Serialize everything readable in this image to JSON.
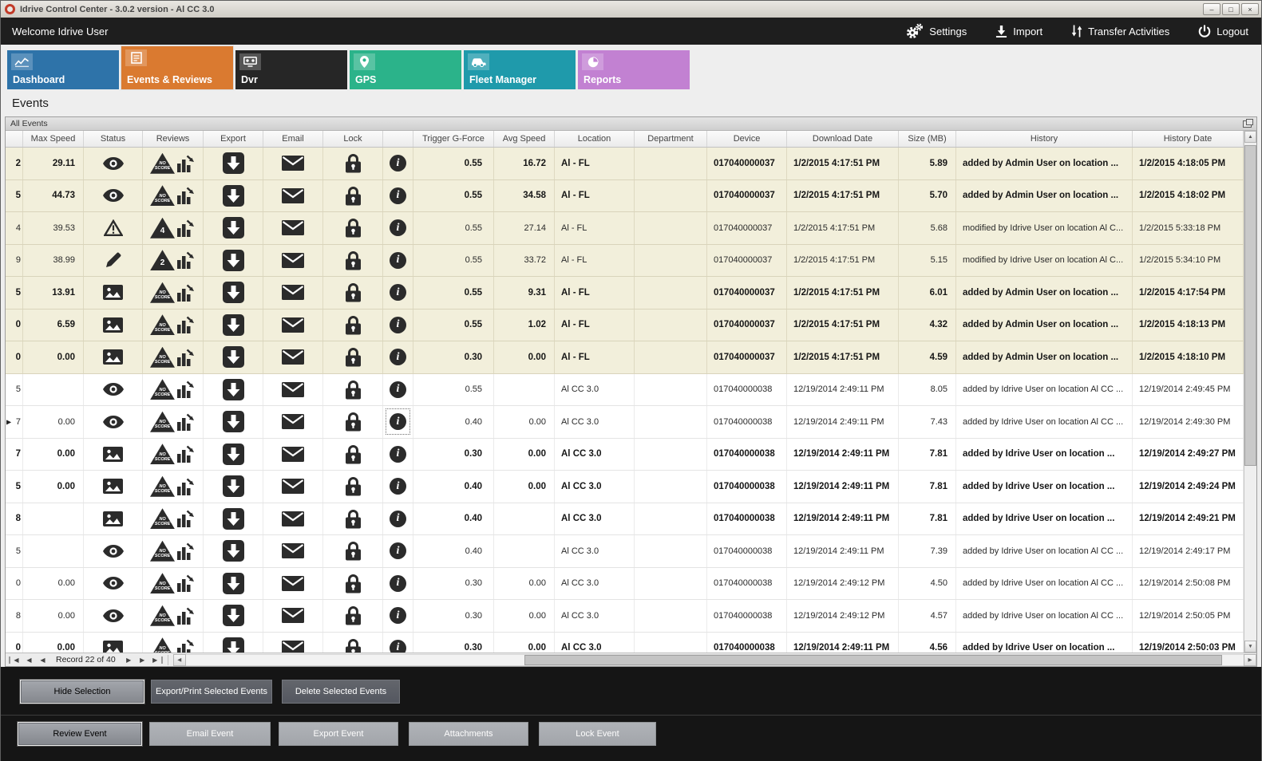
{
  "window": {
    "title": "Idrive Control Center - 3.0.2 version - Al CC 3.0"
  },
  "topbar": {
    "welcome": "Welcome Idrive User",
    "actions": [
      {
        "id": "settings",
        "icon": "gears-icon",
        "label": "Settings"
      },
      {
        "id": "import",
        "icon": "import-icon",
        "label": "Import"
      },
      {
        "id": "transfer-activities",
        "icon": "transfer-icon",
        "label": "Transfer Activities"
      },
      {
        "id": "logout",
        "icon": "power-icon",
        "label": "Logout"
      }
    ]
  },
  "tabs": [
    {
      "id": "dashboard",
      "label": "Dashboard",
      "icon": "dashboard-icon",
      "color": "#2e73a9",
      "selected": false
    },
    {
      "id": "events-reviews",
      "label": "Events & Reviews",
      "icon": "events-icon",
      "color": "#da7a30",
      "selected": true
    },
    {
      "id": "dvr",
      "label": "Dvr",
      "icon": "dvr-icon",
      "color": "#262626",
      "selected": false
    },
    {
      "id": "gps",
      "label": "GPS",
      "icon": "gps-icon",
      "color": "#2bb38a",
      "selected": false
    },
    {
      "id": "fleet-manager",
      "label": "Fleet Manager",
      "icon": "fleet-icon",
      "color": "#1f9aab",
      "selected": false
    },
    {
      "id": "reports",
      "label": "Reports",
      "icon": "reports-icon",
      "color": "#c281d2",
      "selected": false
    }
  ],
  "page": {
    "heading": "Events",
    "panel_title": "All Events"
  },
  "table": {
    "columns": [
      "",
      "Max Speed",
      "Status",
      "Reviews",
      "Export",
      "Email",
      "Lock",
      "",
      "Trigger G-Force",
      "Avg Speed",
      "Location",
      "Department",
      "Device",
      "Download Date",
      "Size (MB)",
      "History",
      "History Date"
    ],
    "rows": [
      {
        "partial": "2",
        "max_speed": "29.11",
        "status": "eye-icon",
        "score": "NO SCORE",
        "gforce": "0.55",
        "avg_speed": "16.72",
        "location": "Al - FL",
        "department": "",
        "device": "017040000037",
        "download_date": "1/2/2015 4:17:51 PM",
        "size_mb": "5.89",
        "history": "added by Admin User on location ...",
        "history_date": "1/2/2015 4:18:05 PM",
        "bold": true,
        "beige": true,
        "selected": false
      },
      {
        "partial": "5",
        "max_speed": "44.73",
        "status": "eye-icon",
        "score": "NO SCORE",
        "gforce": "0.55",
        "avg_speed": "34.58",
        "location": "Al - FL",
        "department": "",
        "device": "017040000037",
        "download_date": "1/2/2015 4:17:51 PM",
        "size_mb": "5.70",
        "history": "added by Admin User on location ...",
        "history_date": "1/2/2015 4:18:02 PM",
        "bold": true,
        "beige": true,
        "selected": false
      },
      {
        "partial": "4",
        "max_speed": "39.53",
        "status": "warning-icon",
        "score": "4",
        "gforce": "0.55",
        "avg_speed": "27.14",
        "location": "Al - FL",
        "department": "",
        "device": "017040000037",
        "download_date": "1/2/2015 4:17:51 PM",
        "size_mb": "5.68",
        "history": "modified by Idrive User on location Al C...",
        "history_date": "1/2/2015 5:33:18 PM",
        "bold": false,
        "beige": true,
        "selected": false
      },
      {
        "partial": "9",
        "max_speed": "38.99",
        "status": "pencil-icon",
        "score": "2",
        "gforce": "0.55",
        "avg_speed": "33.72",
        "location": "Al - FL",
        "department": "",
        "device": "017040000037",
        "download_date": "1/2/2015 4:17:51 PM",
        "size_mb": "5.15",
        "history": "modified by Idrive User on location Al C...",
        "history_date": "1/2/2015 5:34:10 PM",
        "bold": false,
        "beige": true,
        "selected": false
      },
      {
        "partial": "5",
        "max_speed": "13.91",
        "status": "image-icon",
        "score": "NO SCORE",
        "gforce": "0.55",
        "avg_speed": "9.31",
        "location": "Al - FL",
        "department": "",
        "device": "017040000037",
        "download_date": "1/2/2015 4:17:51 PM",
        "size_mb": "6.01",
        "history": "added by Admin User on location ...",
        "history_date": "1/2/2015 4:17:54 PM",
        "bold": true,
        "beige": true,
        "selected": false
      },
      {
        "partial": "0",
        "max_speed": "6.59",
        "status": "image-icon",
        "score": "NO SCORE",
        "gforce": "0.55",
        "avg_speed": "1.02",
        "location": "Al - FL",
        "department": "",
        "device": "017040000037",
        "download_date": "1/2/2015 4:17:51 PM",
        "size_mb": "4.32",
        "history": "added by Admin User on location ...",
        "history_date": "1/2/2015 4:18:13 PM",
        "bold": true,
        "beige": true,
        "selected": false
      },
      {
        "partial": "0",
        "max_speed": "0.00",
        "status": "image-icon",
        "score": "NO SCORE",
        "gforce": "0.30",
        "avg_speed": "0.00",
        "location": "Al - FL",
        "department": "",
        "device": "017040000037",
        "download_date": "1/2/2015 4:17:51 PM",
        "size_mb": "4.59",
        "history": "added by Admin User on location ...",
        "history_date": "1/2/2015 4:18:10 PM",
        "bold": true,
        "beige": true,
        "selected": false
      },
      {
        "partial": "5",
        "max_speed": "",
        "status": "eye-icon",
        "score": "NO SCORE",
        "gforce": "0.55",
        "avg_speed": "",
        "location": "Al CC 3.0",
        "department": "",
        "device": "017040000038",
        "download_date": "12/19/2014 2:49:11 PM",
        "size_mb": "8.05",
        "history": "added by Idrive User on location Al CC ...",
        "history_date": "12/19/2014 2:49:45 PM",
        "bold": false,
        "beige": false,
        "selected": false
      },
      {
        "partial": "7",
        "max_speed": "0.00",
        "status": "eye-icon",
        "score": "NO SCORE",
        "gforce": "0.40",
        "avg_speed": "0.00",
        "location": "Al CC 3.0",
        "department": "",
        "device": "017040000038",
        "download_date": "12/19/2014 2:49:11 PM",
        "size_mb": "7.43",
        "history": "added by Idrive User on location Al CC ...",
        "history_date": "12/19/2014 2:49:30 PM",
        "bold": false,
        "beige": false,
        "selected": true
      },
      {
        "partial": "7",
        "max_speed": "0.00",
        "status": "image-icon",
        "score": "NO SCORE",
        "gforce": "0.30",
        "avg_speed": "0.00",
        "location": "Al CC 3.0",
        "department": "",
        "device": "017040000038",
        "download_date": "12/19/2014 2:49:11 PM",
        "size_mb": "7.81",
        "history": "added by Idrive User on location ...",
        "history_date": "12/19/2014 2:49:27 PM",
        "bold": true,
        "beige": false,
        "selected": false
      },
      {
        "partial": "5",
        "max_speed": "0.00",
        "status": "image-icon",
        "score": "NO SCORE",
        "gforce": "0.40",
        "avg_speed": "0.00",
        "location": "Al CC 3.0",
        "department": "",
        "device": "017040000038",
        "download_date": "12/19/2014 2:49:11 PM",
        "size_mb": "7.81",
        "history": "added by Idrive User on location ...",
        "history_date": "12/19/2014 2:49:24 PM",
        "bold": true,
        "beige": false,
        "selected": false
      },
      {
        "partial": "8",
        "max_speed": "",
        "status": "image-icon",
        "score": "NO SCORE",
        "gforce": "0.40",
        "avg_speed": "",
        "location": "Al CC 3.0",
        "department": "",
        "device": "017040000038",
        "download_date": "12/19/2014 2:49:11 PM",
        "size_mb": "7.81",
        "history": "added by Idrive User on location ...",
        "history_date": "12/19/2014 2:49:21 PM",
        "bold": true,
        "beige": false,
        "selected": false
      },
      {
        "partial": "5",
        "max_speed": "",
        "status": "eye-icon",
        "score": "NO SCORE",
        "gforce": "0.40",
        "avg_speed": "",
        "location": "Al CC 3.0",
        "department": "",
        "device": "017040000038",
        "download_date": "12/19/2014 2:49:11 PM",
        "size_mb": "7.39",
        "history": "added by Idrive User on location Al CC ...",
        "history_date": "12/19/2014 2:49:17 PM",
        "bold": false,
        "beige": false,
        "selected": false
      },
      {
        "partial": "0",
        "max_speed": "0.00",
        "status": "eye-icon",
        "score": "NO SCORE",
        "gforce": "0.30",
        "avg_speed": "0.00",
        "location": "Al CC 3.0",
        "department": "",
        "device": "017040000038",
        "download_date": "12/19/2014 2:49:12 PM",
        "size_mb": "4.50",
        "history": "added by Idrive User on location Al CC ...",
        "history_date": "12/19/2014 2:50:08 PM",
        "bold": false,
        "beige": false,
        "selected": false
      },
      {
        "partial": "8",
        "max_speed": "0.00",
        "status": "eye-icon",
        "score": "NO SCORE",
        "gforce": "0.30",
        "avg_speed": "0.00",
        "location": "Al CC 3.0",
        "department": "",
        "device": "017040000038",
        "download_date": "12/19/2014 2:49:12 PM",
        "size_mb": "4.57",
        "history": "added by Idrive User on location Al CC ...",
        "history_date": "12/19/2014 2:50:05 PM",
        "bold": false,
        "beige": false,
        "selected": false
      },
      {
        "partial": "0",
        "max_speed": "0.00",
        "status": "image-icon",
        "score": "NO SCORE",
        "gforce": "0.30",
        "avg_speed": "0.00",
        "location": "Al CC 3.0",
        "department": "",
        "device": "017040000038",
        "download_date": "12/19/2014 2:49:11 PM",
        "size_mb": "4.56",
        "history": "added by Idrive User on location ...",
        "history_date": "12/19/2014 2:50:03 PM",
        "bold": true,
        "beige": false,
        "selected": false
      }
    ]
  },
  "nav": {
    "record_text": "Record 22 of 40"
  },
  "action_panel": {
    "row1": [
      "Hide Selection",
      "Export/Print Selected Events",
      "Delete Selected  Events"
    ],
    "row2": [
      "Review Event",
      "Email Event",
      "Export Event",
      "Attachments",
      "Lock Event"
    ],
    "focused": [
      "Hide Selection",
      "Review Event"
    ]
  }
}
